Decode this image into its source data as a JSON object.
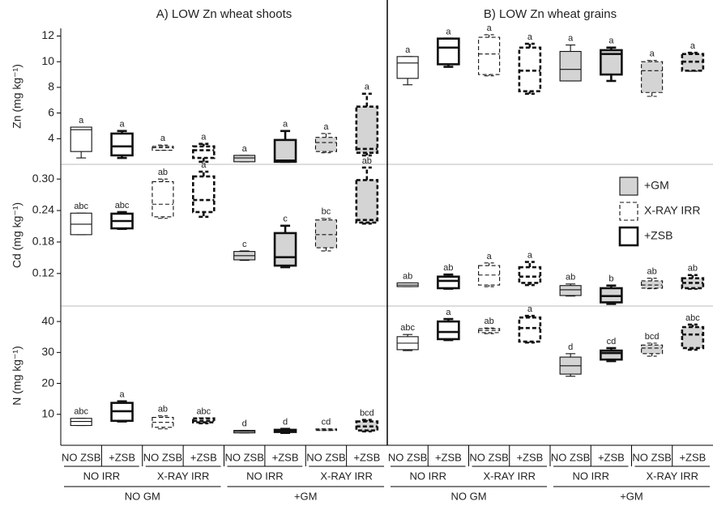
{
  "chart_data": [
    {
      "type": "box",
      "title": "A) LOW Zn wheat shoots",
      "ylabel": "Zn (mg kg⁻¹)",
      "ylim": [
        2,
        12.6
      ],
      "yticks": [
        4,
        6,
        8,
        10,
        12
      ],
      "boxes": [
        {
          "min": 2.5,
          "q1": 3.0,
          "median": 4.7,
          "q3": 4.9,
          "max": 4.9
        },
        {
          "min": 2.5,
          "q1": 2.7,
          "median": 3.4,
          "q3": 4.4,
          "max": 4.6
        },
        {
          "min": 3.1,
          "q1": 3.1,
          "median": 3.3,
          "q3": 3.4,
          "max": 3.5
        },
        {
          "min": 2.2,
          "q1": 2.5,
          "median": 3.1,
          "q3": 3.4,
          "max": 3.6
        },
        {
          "min": 2.2,
          "q1": 2.2,
          "median": 2.5,
          "q3": 2.7,
          "max": 2.7
        },
        {
          "min": 2.2,
          "q1": 2.2,
          "median": 2.3,
          "q3": 3.9,
          "max": 4.6
        },
        {
          "min": 2.9,
          "q1": 3.0,
          "median": 3.7,
          "q3": 4.1,
          "max": 4.4
        },
        {
          "min": 2.7,
          "q1": 2.9,
          "median": 3.2,
          "q3": 6.5,
          "max": 7.5
        }
      ],
      "labels": [
        "a",
        "a",
        "a",
        "a",
        "a",
        "a",
        "a",
        "a"
      ]
    },
    {
      "type": "box",
      "ylabel": "Cd (mg kg⁻¹)",
      "ylim": [
        0.058,
        0.328
      ],
      "yticks": [
        0.12,
        0.18,
        0.24,
        {
          "value": 0.3,
          "label": "0.30"
        }
      ],
      "boxes": [
        {
          "min": 0.194,
          "q1": 0.194,
          "median": 0.214,
          "q3": 0.235,
          "max": 0.235
        },
        {
          "min": 0.205,
          "q1": 0.206,
          "median": 0.22,
          "q3": 0.234,
          "max": 0.237
        },
        {
          "min": 0.225,
          "q1": 0.228,
          "median": 0.252,
          "q3": 0.295,
          "max": 0.3
        },
        {
          "min": 0.228,
          "q1": 0.237,
          "median": 0.26,
          "q3": 0.305,
          "max": 0.314
        },
        {
          "min": 0.145,
          "q1": 0.146,
          "median": 0.154,
          "q3": 0.162,
          "max": 0.163
        },
        {
          "min": 0.132,
          "q1": 0.135,
          "median": 0.151,
          "q3": 0.197,
          "max": 0.211
        },
        {
          "min": 0.163,
          "q1": 0.169,
          "median": 0.194,
          "q3": 0.222,
          "max": 0.225
        },
        {
          "min": 0.215,
          "q1": 0.217,
          "median": 0.222,
          "q3": 0.298,
          "max": 0.322
        }
      ],
      "labels": [
        "abc",
        "abc",
        "ab",
        "a",
        "c",
        "c",
        "bc",
        "ab"
      ]
    },
    {
      "type": "box",
      "ylabel": "N (mg kg⁻¹)",
      "ylim": [
        0,
        45
      ],
      "yticks": [
        10,
        20,
        30,
        40
      ],
      "categories": [
        "NO ZSB",
        "+ZSB",
        "NO ZSB",
        "+ZSB",
        "NO ZSB",
        "+ZSB",
        "NO ZSB",
        "+ZSB"
      ],
      "groups": [
        "NO IRR",
        "X-RAY IRR",
        "NO IRR",
        "X-RAY IRR"
      ],
      "supergroups": [
        "NO GM",
        "+GM"
      ],
      "boxes": [
        {
          "min": 6.4,
          "q1": 6.4,
          "median": 7.7,
          "q3": 8.7,
          "max": 8.7
        },
        {
          "min": 7.7,
          "q1": 7.9,
          "median": 11.0,
          "q3": 13.7,
          "max": 14.2
        },
        {
          "min": 5.3,
          "q1": 5.8,
          "median": 7.4,
          "q3": 9.0,
          "max": 9.5
        },
        {
          "min": 7.1,
          "q1": 7.4,
          "median": 7.9,
          "q3": 8.7,
          "max": 8.7
        },
        {
          "min": 4.0,
          "q1": 4.0,
          "median": 4.5,
          "q3": 4.8,
          "max": 4.8
        },
        {
          "min": 4.0,
          "q1": 4.3,
          "median": 4.8,
          "q3": 5.0,
          "max": 5.3
        },
        {
          "min": 4.8,
          "q1": 4.8,
          "median": 5.0,
          "q3": 5.3,
          "max": 5.3
        },
        {
          "min": 4.5,
          "q1": 4.8,
          "median": 6.1,
          "q3": 7.7,
          "max": 8.2
        }
      ],
      "labels": [
        "abc",
        "a",
        "ab",
        "abc",
        "d",
        "d",
        "cd",
        "bcd"
      ]
    },
    {
      "type": "box",
      "title": "B) LOW Zn wheat grains",
      "ylim": [
        2,
        12.6
      ],
      "boxes": [
        {
          "min": 8.2,
          "q1": 8.7,
          "median": 9.9,
          "q3": 10.4,
          "max": 10.4
        },
        {
          "min": 9.6,
          "q1": 9.8,
          "median": 11.1,
          "q3": 11.8,
          "max": 11.8
        },
        {
          "min": 8.9,
          "q1": 9.0,
          "median": 10.6,
          "q3": 11.9,
          "max": 12.1
        },
        {
          "min": 7.5,
          "q1": 7.7,
          "median": 9.3,
          "q3": 11.1,
          "max": 11.4
        },
        {
          "min": 8.5,
          "q1": 8.5,
          "median": 9.4,
          "q3": 10.8,
          "max": 11.3
        },
        {
          "min": 8.5,
          "q1": 9.0,
          "median": 10.6,
          "q3": 10.9,
          "max": 11.1
        },
        {
          "min": 7.3,
          "q1": 7.6,
          "median": 9.3,
          "q3": 10.0,
          "max": 10.1
        },
        {
          "min": 9.3,
          "q1": 9.3,
          "median": 10.0,
          "q3": 10.6,
          "max": 10.7
        }
      ],
      "labels": [
        "a",
        "a",
        "a",
        "a",
        "a",
        "a",
        "a",
        "a"
      ]
    },
    {
      "type": "box",
      "ylim": [
        0.058,
        0.328
      ],
      "legend": [
        {
          "name": "+GM",
          "color": "#d4d4d4",
          "dashed": false,
          "bold": false
        },
        {
          "name": "X-RAY IRR",
          "color": "#ffffff",
          "dashed": true,
          "bold": false
        },
        {
          "name": "+ZSB",
          "color": "#ffffff",
          "dashed": false,
          "bold": true
        }
      ],
      "boxes": [
        {
          "min": 0.095,
          "q1": 0.095,
          "median": 0.098,
          "q3": 0.102,
          "max": 0.102
        },
        {
          "min": 0.091,
          "q1": 0.092,
          "median": 0.106,
          "q3": 0.114,
          "max": 0.118
        },
        {
          "min": 0.095,
          "q1": 0.098,
          "median": 0.117,
          "q3": 0.135,
          "max": 0.14
        },
        {
          "min": 0.098,
          "q1": 0.102,
          "median": 0.114,
          "q3": 0.132,
          "max": 0.142
        },
        {
          "min": 0.077,
          "q1": 0.078,
          "median": 0.089,
          "q3": 0.097,
          "max": 0.1
        },
        {
          "min": 0.062,
          "q1": 0.065,
          "median": 0.077,
          "q3": 0.092,
          "max": 0.097
        },
        {
          "min": 0.091,
          "q1": 0.092,
          "median": 0.098,
          "q3": 0.106,
          "max": 0.111
        },
        {
          "min": 0.091,
          "q1": 0.092,
          "median": 0.102,
          "q3": 0.111,
          "max": 0.117
        }
      ],
      "labels": [
        "ab",
        "ab",
        "a",
        "a",
        "ab",
        "b",
        "ab",
        "ab"
      ]
    },
    {
      "type": "box",
      "ylim": [
        0,
        45
      ],
      "categories": [
        "NO ZSB",
        "+ZSB",
        "NO ZSB",
        "+ZSB",
        "NO ZSB",
        "+ZSB",
        "NO ZSB",
        "+ZSB"
      ],
      "groups": [
        "NO IRR",
        "X-RAY IRR",
        "NO IRR",
        "X-RAY IRR"
      ],
      "supergroups": [
        "NO GM",
        "+GM"
      ],
      "boxes": [
        {
          "min": 30.6,
          "q1": 30.9,
          "median": 33.0,
          "q3": 35.1,
          "max": 35.8
        },
        {
          "min": 34.0,
          "q1": 34.3,
          "median": 36.6,
          "q3": 40.0,
          "max": 40.8
        },
        {
          "min": 36.1,
          "q1": 36.4,
          "median": 37.1,
          "q3": 37.7,
          "max": 37.9
        },
        {
          "min": 33.2,
          "q1": 33.5,
          "median": 37.9,
          "q3": 41.3,
          "max": 41.8
        },
        {
          "min": 22.3,
          "q1": 23.0,
          "median": 25.7,
          "q3": 28.5,
          "max": 29.6
        },
        {
          "min": 27.2,
          "q1": 27.7,
          "median": 29.8,
          "q3": 30.6,
          "max": 31.4
        },
        {
          "min": 28.8,
          "q1": 29.6,
          "median": 31.4,
          "q3": 32.4,
          "max": 33.0
        },
        {
          "min": 30.9,
          "q1": 31.4,
          "median": 35.8,
          "q3": 38.2,
          "max": 39.0
        }
      ],
      "labels": [
        "abc",
        "a",
        "ab",
        "a",
        "d",
        "cd",
        "bcd",
        "abc"
      ]
    }
  ],
  "box_style": {
    "fill": [
      "#ffffff",
      "#ffffff",
      "#ffffff",
      "#ffffff",
      "#d4d4d4",
      "#d4d4d4",
      "#d4d4d4",
      "#d4d4d4"
    ],
    "dashed": [
      false,
      false,
      true,
      true,
      false,
      false,
      true,
      true
    ],
    "bold": [
      false,
      true,
      false,
      true,
      false,
      true,
      false,
      true
    ]
  }
}
